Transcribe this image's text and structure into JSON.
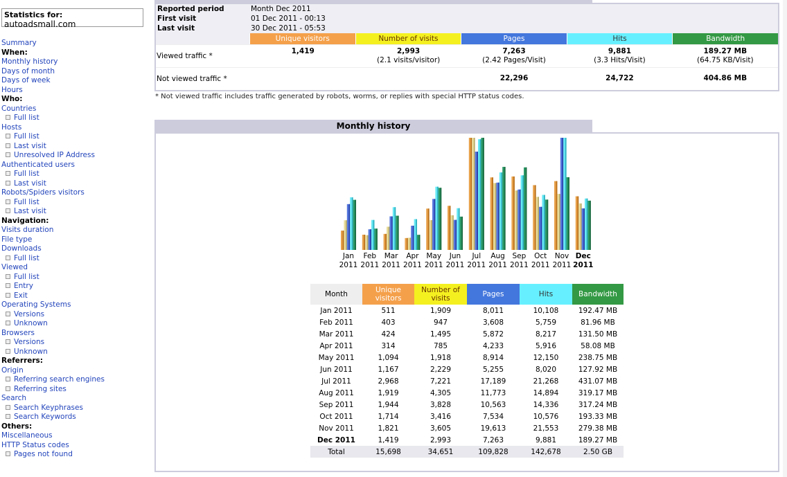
{
  "menu": {
    "stats_title": "Statistics for:",
    "domain": "autoadsmall.com",
    "items": [
      {
        "t": "l",
        "label": "Summary"
      },
      {
        "t": "h",
        "label": "When:"
      },
      {
        "t": "l",
        "label": "Monthly history"
      },
      {
        "t": "l",
        "label": "Days of month"
      },
      {
        "t": "l",
        "label": "Days of week"
      },
      {
        "t": "l",
        "label": "Hours"
      },
      {
        "t": "h",
        "label": "Who:"
      },
      {
        "t": "l",
        "label": "Countries"
      },
      {
        "t": "s",
        "label": "Full list"
      },
      {
        "t": "l",
        "label": "Hosts"
      },
      {
        "t": "s",
        "label": "Full list"
      },
      {
        "t": "s",
        "label": "Last visit"
      },
      {
        "t": "s",
        "label": "Unresolved IP Address"
      },
      {
        "t": "l",
        "label": "Authenticated users"
      },
      {
        "t": "s",
        "label": "Full list"
      },
      {
        "t": "s",
        "label": "Last visit"
      },
      {
        "t": "l",
        "label": "Robots/Spiders visitors"
      },
      {
        "t": "s",
        "label": "Full list"
      },
      {
        "t": "s",
        "label": "Last visit"
      },
      {
        "t": "h",
        "label": "Navigation:"
      },
      {
        "t": "l",
        "label": "Visits duration"
      },
      {
        "t": "l",
        "label": "File type"
      },
      {
        "t": "l",
        "label": "Downloads"
      },
      {
        "t": "s",
        "label": "Full list"
      },
      {
        "t": "l",
        "label": "Viewed"
      },
      {
        "t": "s",
        "label": "Full list"
      },
      {
        "t": "s",
        "label": "Entry"
      },
      {
        "t": "s",
        "label": "Exit"
      },
      {
        "t": "l",
        "label": "Operating Systems"
      },
      {
        "t": "s",
        "label": "Versions"
      },
      {
        "t": "s",
        "label": "Unknown"
      },
      {
        "t": "l",
        "label": "Browsers"
      },
      {
        "t": "s",
        "label": "Versions"
      },
      {
        "t": "s",
        "label": "Unknown"
      },
      {
        "t": "h",
        "label": "Referrers:"
      },
      {
        "t": "l",
        "label": "Origin"
      },
      {
        "t": "s",
        "label": "Referring search engines"
      },
      {
        "t": "s",
        "label": "Referring sites"
      },
      {
        "t": "l",
        "label": "Search"
      },
      {
        "t": "s",
        "label": "Search Keyphrases"
      },
      {
        "t": "s",
        "label": "Search Keywords"
      },
      {
        "t": "h",
        "label": "Others:"
      },
      {
        "t": "l",
        "label": "Miscellaneous"
      },
      {
        "t": "l",
        "label": "HTTP Status codes"
      },
      {
        "t": "s",
        "label": "Pages not found"
      }
    ]
  },
  "summary": {
    "reported_period_label": "Reported period",
    "reported_period": "Month Dec 2011",
    "first_visit_label": "First visit",
    "first_visit": "01 Dec 2011 - 00:13",
    "last_visit_label": "Last visit",
    "last_visit": "30 Dec 2011 - 05:53",
    "headers": [
      "Unique visitors",
      "Number of visits",
      "Pages",
      "Hits",
      "Bandwidth"
    ],
    "viewed_label": "Viewed traffic *",
    "viewed": [
      {
        "main": "1,419",
        "sub": ""
      },
      {
        "main": "2,993",
        "sub": "(2.1 visits/visitor)"
      },
      {
        "main": "7,263",
        "sub": "(2.42 Pages/Visit)"
      },
      {
        "main": "9,881",
        "sub": "(3.3 Hits/Visit)"
      },
      {
        "main": "189.27 MB",
        "sub": "(64.75 KB/Visit)"
      }
    ],
    "not_viewed_label": "Not viewed traffic *",
    "not_viewed": [
      "",
      "",
      "22,296",
      "24,722",
      "404.86 MB"
    ],
    "footnote": "* Not viewed traffic includes traffic generated by robots, worms, or replies with special HTTP status codes."
  },
  "colors": {
    "unique": "#f4a04b",
    "visits": "#f4f020",
    "pages": "#4477dd",
    "hits": "#66f0ff",
    "bandwidth": "#339944",
    "header_bg": "#ccccdd",
    "link": "#2244bb"
  },
  "monthly": {
    "title": "Monthly history",
    "table_headers": {
      "month": "Month",
      "unique": "Unique visitors",
      "visits": "Number of visits",
      "pages": "Pages",
      "hits": "Hits",
      "bandwidth": "Bandwidth"
    },
    "rows": [
      {
        "month": "Jan 2011",
        "unique": "511",
        "visits": "1,909",
        "pages": "8,011",
        "hits": "10,108",
        "bandwidth": "192.47 MB"
      },
      {
        "month": "Feb 2011",
        "unique": "403",
        "visits": "947",
        "pages": "3,608",
        "hits": "5,759",
        "bandwidth": "81.96 MB"
      },
      {
        "month": "Mar 2011",
        "unique": "424",
        "visits": "1,495",
        "pages": "5,872",
        "hits": "8,217",
        "bandwidth": "131.50 MB"
      },
      {
        "month": "Apr 2011",
        "unique": "314",
        "visits": "785",
        "pages": "4,233",
        "hits": "5,916",
        "bandwidth": "58.08 MB"
      },
      {
        "month": "May 2011",
        "unique": "1,094",
        "visits": "1,918",
        "pages": "8,914",
        "hits": "12,150",
        "bandwidth": "238.75 MB"
      },
      {
        "month": "Jun 2011",
        "unique": "1,167",
        "visits": "2,229",
        "pages": "5,255",
        "hits": "8,020",
        "bandwidth": "127.92 MB"
      },
      {
        "month": "Jul 2011",
        "unique": "2,968",
        "visits": "7,221",
        "pages": "17,189",
        "hits": "21,268",
        "bandwidth": "431.07 MB"
      },
      {
        "month": "Aug 2011",
        "unique": "1,919",
        "visits": "4,305",
        "pages": "11,773",
        "hits": "14,894",
        "bandwidth": "319.17 MB"
      },
      {
        "month": "Sep 2011",
        "unique": "1,944",
        "visits": "3,828",
        "pages": "10,563",
        "hits": "14,336",
        "bandwidth": "317.24 MB"
      },
      {
        "month": "Oct 2011",
        "unique": "1,714",
        "visits": "3,416",
        "pages": "7,534",
        "hits": "10,576",
        "bandwidth": "193.33 MB"
      },
      {
        "month": "Nov 2011",
        "unique": "1,821",
        "visits": "3,605",
        "pages": "19,613",
        "hits": "21,553",
        "bandwidth": "279.38 MB"
      },
      {
        "month": "Dec 2011",
        "unique": "1,419",
        "visits": "2,993",
        "pages": "7,263",
        "hits": "9,881",
        "bandwidth": "189.27 MB",
        "bold": true
      }
    ],
    "total": {
      "month": "Total",
      "unique": "15,698",
      "visits": "34,651",
      "pages": "109,828",
      "hits": "142,678",
      "bandwidth": "2.50 GB"
    }
  },
  "chart_data": {
    "type": "bar",
    "categories": [
      "Jan 2011",
      "Feb 2011",
      "Mar 2011",
      "Apr 2011",
      "May 2011",
      "Jun 2011",
      "Jul 2011",
      "Aug 2011",
      "Sep 2011",
      "Oct 2011",
      "Nov 2011",
      "Dec 2011"
    ],
    "axis_labels": [
      {
        "m": "Jan",
        "y": "2011"
      },
      {
        "m": "Feb",
        "y": "2011"
      },
      {
        "m": "Mar",
        "y": "2011"
      },
      {
        "m": "Apr",
        "y": "2011"
      },
      {
        "m": "May",
        "y": "2011"
      },
      {
        "m": "Jun",
        "y": "2011"
      },
      {
        "m": "Jul",
        "y": "2011"
      },
      {
        "m": "Aug",
        "y": "2011"
      },
      {
        "m": "Sep",
        "y": "2011"
      },
      {
        "m": "Oct",
        "y": "2011"
      },
      {
        "m": "Nov",
        "y": "2011"
      },
      {
        "m": "Dec",
        "y": "2011"
      }
    ],
    "highlight_category": "Dec 2011",
    "series": [
      {
        "name": "Unique visitors",
        "values": [
          511,
          403,
          424,
          314,
          1094,
          1167,
          2968,
          1919,
          1944,
          1714,
          1821,
          1419
        ]
      },
      {
        "name": "Number of visits",
        "values": [
          1909,
          947,
          1495,
          785,
          1918,
          2229,
          7221,
          4305,
          3828,
          3416,
          3605,
          2993
        ]
      },
      {
        "name": "Pages",
        "values": [
          8011,
          3608,
          5872,
          4233,
          8914,
          5255,
          17189,
          11773,
          10563,
          7534,
          19613,
          7263
        ]
      },
      {
        "name": "Hits",
        "values": [
          10108,
          5759,
          8217,
          5916,
          12150,
          8020,
          21268,
          14894,
          14336,
          10576,
          21553,
          9881
        ]
      },
      {
        "name": "Bandwidth",
        "values": [
          192.47,
          81.96,
          131.5,
          58.08,
          238.75,
          127.92,
          431.07,
          319.17,
          317.24,
          193.33,
          279.38,
          189.27
        ]
      }
    ],
    "grid": false,
    "legend": "none"
  }
}
